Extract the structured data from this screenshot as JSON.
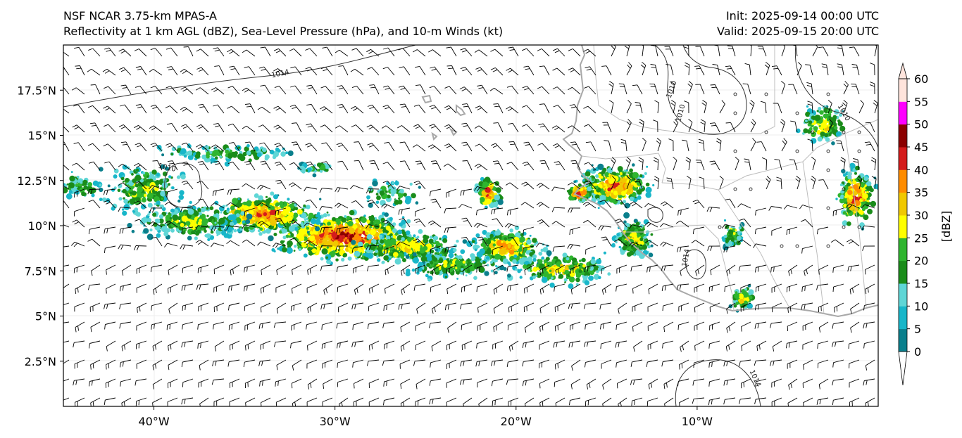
{
  "header": {
    "model": "NSF NCAR 3.75-km MPAS-A",
    "fields": "Reflectivity at 1 km AGL (dBZ), Sea-Level Pressure (hPa), and 10-m Winds (kt)",
    "init": "Init: 2025-09-14 00:00 UTC",
    "valid": "Valid: 2025-09-15 20:00 UTC"
  },
  "map": {
    "lon_range": [
      -45,
      0
    ],
    "lat_range": [
      0,
      20
    ],
    "lon_labels": [
      {
        "lon": -40,
        "text": "40°W"
      },
      {
        "lon": -30,
        "text": "30°W"
      },
      {
        "lon": -20,
        "text": "20°W"
      },
      {
        "lon": -10,
        "text": "10°W"
      }
    ],
    "lat_labels": [
      {
        "lat": 17.5,
        "text": "17.5°N"
      },
      {
        "lat": 15,
        "text": "15°N"
      },
      {
        "lat": 12.5,
        "text": "12.5°N"
      },
      {
        "lat": 10,
        "text": "10°N"
      },
      {
        "lat": 7.5,
        "text": "7.5°N"
      },
      {
        "lat": 5,
        "text": "5°N"
      },
      {
        "lat": 2.5,
        "text": "2.5°N"
      }
    ],
    "isobar_labels": [
      {
        "text": "1014",
        "lon": -33,
        "lat": 18.3,
        "angle": -12
      },
      {
        "text": "1010",
        "lon": -39.3,
        "lat": 13.1,
        "angle": 12
      },
      {
        "text": "1010",
        "lon": -11.3,
        "lat": 17.5,
        "angle": -70
      },
      {
        "text": "1010",
        "lon": -10.8,
        "lat": 16.2,
        "angle": -75
      },
      {
        "text": "1010",
        "lon": -2.0,
        "lat": 16.2,
        "angle": 60
      },
      {
        "text": "1014",
        "lon": -10.5,
        "lat": 8.2,
        "angle": -80
      },
      {
        "text": "1014",
        "lon": -6.9,
        "lat": 1.5,
        "angle": 65
      }
    ]
  },
  "colorbar": {
    "label": "[dBZ]",
    "ticks": [
      "0",
      "5",
      "10",
      "15",
      "20",
      "25",
      "30",
      "35",
      "40",
      "45",
      "50",
      "55",
      "60"
    ],
    "colors": [
      "#0a7f8c",
      "#18b6c9",
      "#5fd6d6",
      "#1a8c1a",
      "#2fb52f",
      "#ffff00",
      "#f0c800",
      "#ff8c00",
      "#d41c1c",
      "#8b0000",
      "#ff00ff",
      "#ffe4dc"
    ]
  }
}
